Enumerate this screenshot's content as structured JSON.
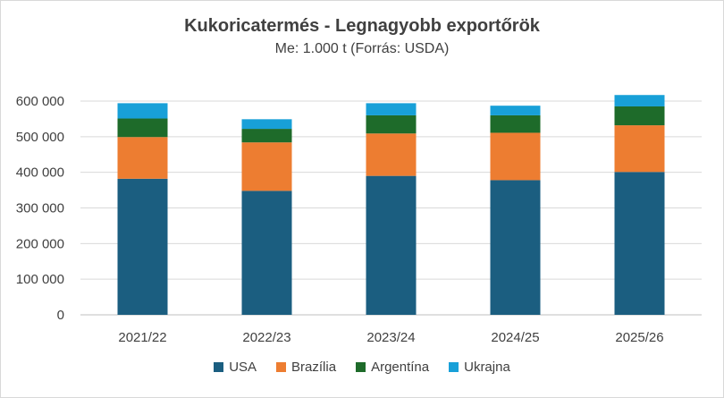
{
  "chart_data": {
    "type": "bar",
    "stacked": true,
    "title": "Kukoricatermés - Legnagyobb exportőrök",
    "subtitle": "Me: 1.000 t (Forrás: USDA)",
    "categories": [
      "2021/22",
      "2022/23",
      "2023/24",
      "2024/25",
      "2025/26"
    ],
    "series": [
      {
        "name": "USA",
        "color": "#1b5e80",
        "values": [
          382000,
          348000,
          390000,
          378000,
          401000
        ]
      },
      {
        "name": "Brazília",
        "color": "#ed7d31",
        "values": [
          117000,
          136000,
          119000,
          133000,
          131000
        ]
      },
      {
        "name": "Argentína",
        "color": "#1e6b2a",
        "values": [
          52000,
          38000,
          51000,
          49000,
          53000
        ]
      },
      {
        "name": "Ukrajna",
        "color": "#18a0d8",
        "values": [
          43000,
          27000,
          34000,
          27000,
          32000
        ]
      }
    ],
    "ylim": [
      0,
      600000
    ],
    "yticks": [
      "0",
      "100 000",
      "200 000",
      "300 000",
      "400 000",
      "500 000",
      "600 000"
    ],
    "grid": true,
    "legend_position": "bottom"
  }
}
